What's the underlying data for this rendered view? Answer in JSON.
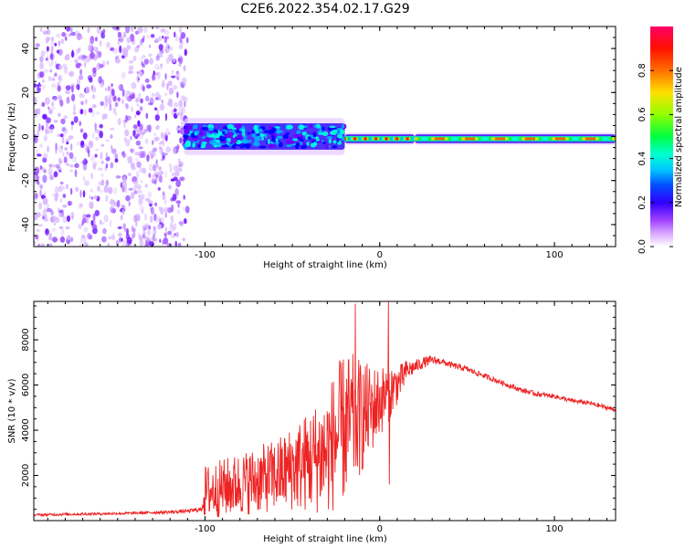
{
  "title": "C2E6.2022.354.02.17.G29",
  "colors": {
    "snr_line": "#ee2222",
    "frame": "#000000",
    "colormap": [
      "#ffffff",
      "#c070ff",
      "#6a00ff",
      "#0000ff",
      "#00b0ff",
      "#00ffe0",
      "#00ff40",
      "#b0ff00",
      "#ffd000",
      "#ff6000",
      "#ff0000",
      "#ff0060"
    ]
  },
  "chart_data": [
    {
      "type": "heatmap",
      "xlabel": "Height of straight line (km)",
      "ylabel": "Frequency (Hz)",
      "xlim": [
        -198,
        135
      ],
      "ylim": [
        -50,
        50
      ],
      "x_ticks": [
        {
          "value": -100,
          "label": "-100"
        },
        {
          "value": 0,
          "label": "0"
        },
        {
          "value": 100,
          "label": "100"
        }
      ],
      "y_ticks": [
        {
          "value": -40,
          "label": "-40"
        },
        {
          "value": -20,
          "label": "-20"
        },
        {
          "value": 0,
          "label": "0"
        },
        {
          "value": 20,
          "label": "20"
        },
        {
          "value": 40,
          "label": "40"
        }
      ],
      "colorbar": {
        "label": "Normalized spectral amplitude",
        "range": [
          0,
          1
        ],
        "ticks": [
          {
            "value": 0.0,
            "label": "0.0"
          },
          {
            "value": 0.2,
            "label": "0.2"
          },
          {
            "value": 0.4,
            "label": "0.4"
          },
          {
            "value": 0.6,
            "label": "0.6"
          },
          {
            "value": 0.8,
            "label": "0.8"
          }
        ]
      },
      "features": [
        {
          "x_range": [
            -198,
            -110
          ],
          "freq_range": [
            -50,
            50
          ],
          "amplitude": [
            0.05,
            0.2
          ],
          "pattern": "scattered noise"
        },
        {
          "x_range": [
            -112,
            -20
          ],
          "freq_center": 0,
          "freq_halfwidth": 6,
          "amplitude": [
            0.2,
            0.55
          ],
          "pattern": "speckled band"
        },
        {
          "x_range": [
            -20,
            20
          ],
          "freq_center": -1,
          "freq_halfwidth": 2,
          "amplitude": [
            0.4,
            0.95
          ],
          "pattern": "narrow line"
        },
        {
          "x_range": [
            20,
            135
          ],
          "freq_center": -1,
          "freq_halfwidth": 2,
          "amplitude": [
            0.5,
            0.9
          ],
          "pattern": "narrow line, red core near 80-100 km"
        }
      ]
    },
    {
      "type": "line",
      "xlabel": "Height of straight line (km)",
      "ylabel": "SNR (10 * v/v)",
      "xlim": [
        -198,
        135
      ],
      "ylim": [
        0,
        9700
      ],
      "x_ticks": [
        {
          "value": -100,
          "label": "-100"
        },
        {
          "value": 0,
          "label": "0"
        },
        {
          "value": 100,
          "label": "100"
        }
      ],
      "y_ticks": [
        {
          "value": 2000,
          "label": "2000"
        },
        {
          "value": 4000,
          "label": "4000"
        },
        {
          "value": 6000,
          "label": "6000"
        },
        {
          "value": 8000,
          "label": "8000"
        }
      ],
      "series": [
        {
          "x": [
            -198,
            -180,
            -160,
            -140,
            -120,
            -110,
            -102,
            -100,
            -90,
            -80,
            -70,
            -60,
            -50,
            -40,
            -30,
            -25,
            -20,
            -15,
            -10,
            -5,
            0,
            5,
            10,
            15,
            20,
            25,
            30,
            35,
            40,
            50,
            60,
            70,
            80,
            90,
            100,
            110,
            120,
            130,
            135
          ],
          "y": [
            250,
            280,
            300,
            330,
            380,
            420,
            500,
            1500,
            1700,
            1900,
            2100,
            2300,
            2700,
            3100,
            3600,
            4300,
            4800,
            5000,
            5100,
            5300,
            5600,
            5900,
            6200,
            6600,
            6800,
            7000,
            7100,
            7050,
            6900,
            6700,
            6400,
            6100,
            5800,
            5600,
            5500,
            5300,
            5200,
            5000,
            4900
          ],
          "noise": [
            50,
            60,
            60,
            60,
            70,
            80,
            100,
            1200,
            1300,
            1400,
            1500,
            1600,
            1900,
            2300,
            2800,
            3200,
            3300,
            3000,
            2500,
            2000,
            1600,
            1300,
            900,
            500,
            300,
            250,
            200,
            150,
            140,
            130,
            120,
            110,
            110,
            110,
            100,
            100,
            100,
            100,
            100
          ],
          "spikes": [
            {
              "x": -14,
              "y": 9600
            },
            {
              "x": 5,
              "y": 9700
            },
            {
              "x": 5.5,
              "y": 1600
            }
          ]
        }
      ]
    }
  ]
}
